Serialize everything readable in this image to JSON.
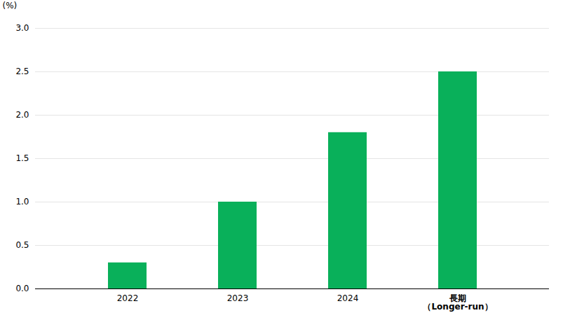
{
  "chart_data": {
    "type": "bar",
    "categories": [
      "2022",
      "2023",
      "2024",
      "長期\n（Longer-run）"
    ],
    "values": [
      0.3,
      1.0,
      1.8,
      2.5
    ],
    "color": "#09B05A",
    "ylabel": "(%)",
    "ylim": [
      0.0,
      3.0
    ],
    "yticks": [
      {
        "value": 0.0,
        "label": "0.0"
      },
      0.5,
      {
        "value": 1.0,
        "label": "1.0"
      },
      1.5,
      {
        "value": 2.0,
        "label": "2.0"
      },
      2.5,
      {
        "value": 3.0,
        "label": "3.0"
      }
    ],
    "grid": true
  }
}
